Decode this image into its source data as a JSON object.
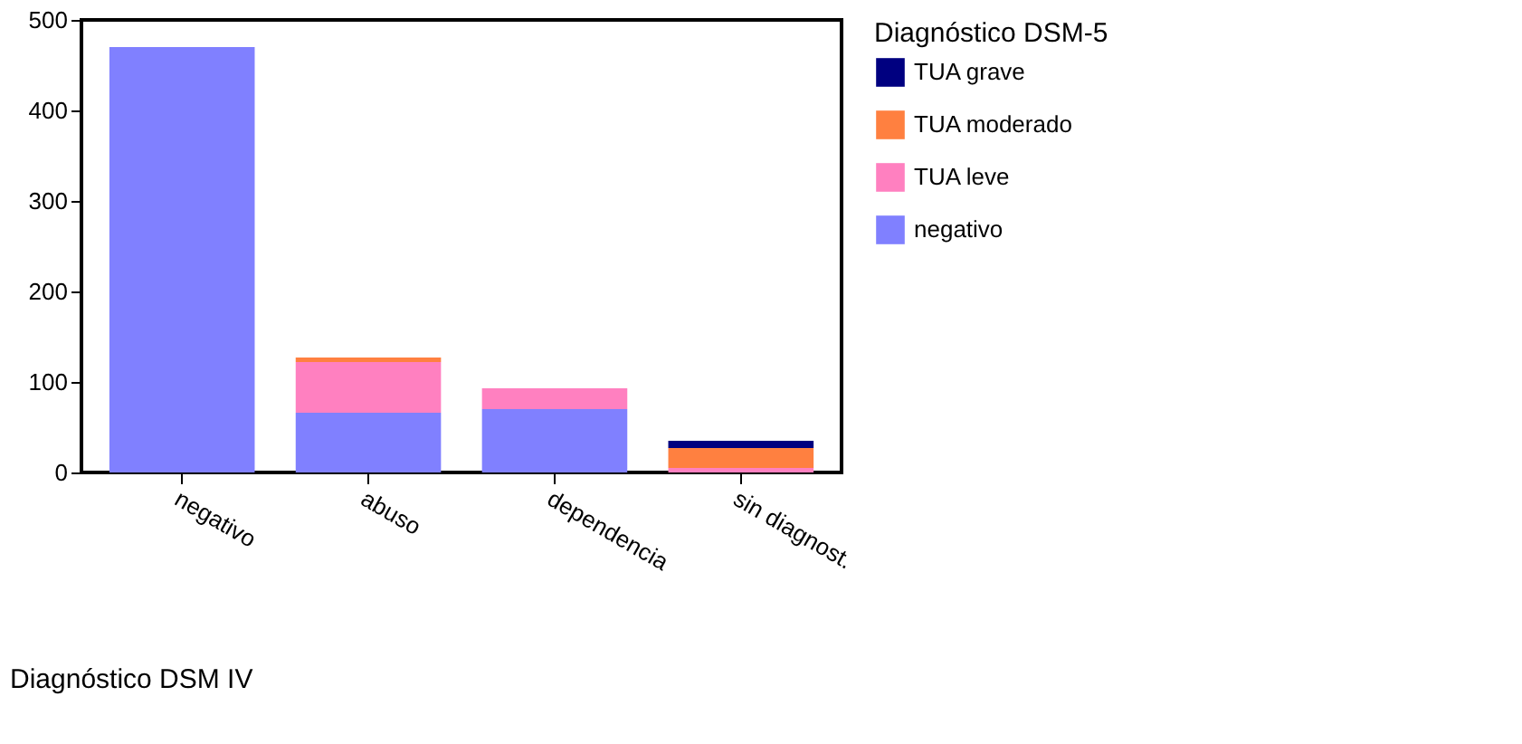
{
  "chart_data": {
    "type": "bar",
    "stacked": true,
    "xlabel": "Diagnóstico DSM IV",
    "legend_title": "Diagnóstico DSM-5",
    "legend": "right",
    "grid": false,
    "categories": [
      "negativo",
      "abuso",
      "dependencia",
      "sin diagnost."
    ],
    "ylim": [
      0,
      500
    ],
    "yticks": [
      0,
      100,
      200,
      300,
      400,
      500
    ],
    "series": [
      {
        "name": "negativo",
        "color": "#8080ff",
        "values": [
          470,
          66,
          70,
          0
        ]
      },
      {
        "name": "TUA leve",
        "color": "#ff80c0",
        "values": [
          0,
          56,
          23,
          5
        ]
      },
      {
        "name": "TUA moderado",
        "color": "#ff8040",
        "values": [
          0,
          5,
          0,
          22
        ]
      },
      {
        "name": "TUA grave",
        "color": "#000080",
        "values": [
          0,
          0,
          0,
          8
        ]
      }
    ]
  }
}
